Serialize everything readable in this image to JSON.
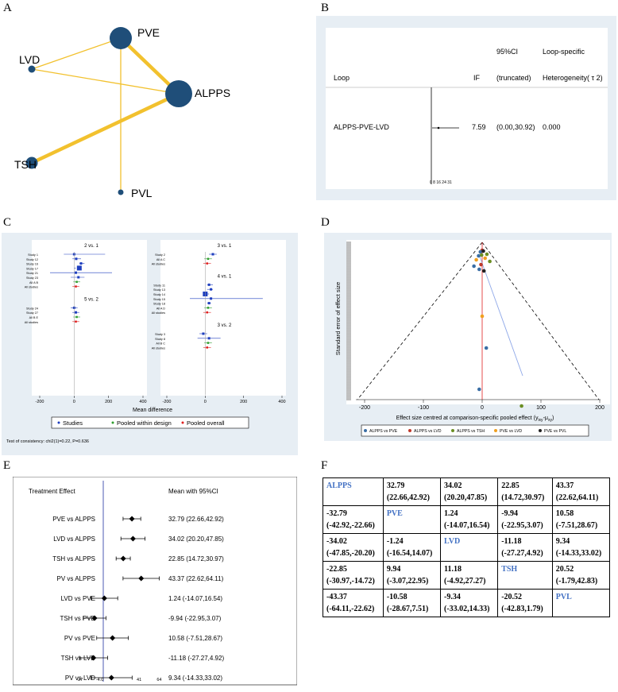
{
  "panels": {
    "a": {
      "letter": "A",
      "nodes": [
        {
          "id": "PVE",
          "label": "PVE"
        },
        {
          "id": "LVD",
          "label": "LVD"
        },
        {
          "id": "ALPPS",
          "label": "ALPPS"
        },
        {
          "id": "TSH",
          "label": "TSH"
        },
        {
          "id": "PVL",
          "label": "PVL"
        }
      ],
      "edges": [
        {
          "from": "PVE",
          "to": "ALPPS",
          "weight": "thick"
        },
        {
          "from": "TSH",
          "to": "ALPPS",
          "weight": "thick"
        },
        {
          "from": "LVD",
          "to": "PVE",
          "weight": "thin"
        },
        {
          "from": "LVD",
          "to": "ALPPS",
          "weight": "thin"
        },
        {
          "from": "PVE",
          "to": "PVL",
          "weight": "thin"
        }
      ],
      "colors": {
        "node": "#1f4e79",
        "edge": "#f2c12e"
      }
    },
    "b": {
      "letter": "B",
      "header": {
        "loop": "Loop",
        "if": "IF",
        "ci_top": "95%CI",
        "ci_bottom": "(truncated)",
        "het_top": "Loop-specific",
        "het_bottom": "Heterogeneity( τ 2)"
      },
      "row": {
        "loop": "ALPPS-PVE-LVD",
        "if": "7.59",
        "ci": "(0.00,30.92)",
        "het": "0.000"
      },
      "axis_ticks": "0  8  16  24 31"
    },
    "c": {
      "letter": "C",
      "left_groups": [
        {
          "title": "2 vs. 1",
          "rows": [
            "Study 1",
            "Study 12",
            "Study 16",
            "Study 17",
            "Study 21",
            "Study 23",
            "All A B",
            "All studies"
          ]
        },
        {
          "title": "5 vs. 2",
          "rows": [
            "Study 24",
            "Study 27",
            "All B E",
            "All studies"
          ]
        }
      ],
      "right_groups": [
        {
          "title": "3 vs. 1",
          "rows": [
            "Study 2",
            "All A C",
            "All studies"
          ]
        },
        {
          "title": "4 vs. 1",
          "rows": [
            "Study 11",
            "Study 13",
            "Study 14",
            "Study 15",
            "Study 18",
            "All A D",
            "All studies"
          ]
        },
        {
          "title": "3 vs. 2",
          "rows": [
            "Study 3",
            "Study 8",
            "All B C",
            "All studies"
          ]
        }
      ],
      "left_ticks": [
        "-200",
        "0",
        "200",
        "400"
      ],
      "right_ticks": [
        "-200",
        "0",
        "200",
        "400"
      ],
      "xlabel": "Mean difference",
      "legend": [
        "Studies",
        "Pooled within design",
        "Pooled overall"
      ],
      "legend_colors": [
        "#1f3fbf",
        "#2e9e2e",
        "#e02020"
      ],
      "consistency": "Test of consistency: chi2(1)=0.22, P=0.636"
    },
    "d": {
      "letter": "D",
      "ylabel": "Standard error of effect size",
      "xlabel": "Effect size centred at comparison-specific pooled effect (y",
      "xlabel_sub": "ixy",
      "xlabel_tail": "-μ",
      "xlabel_tail_sub": "xy",
      "xlabel_end": ")",
      "ticks": [
        "-200",
        "-100",
        "0",
        "100",
        "200"
      ],
      "legend": [
        "ALPPS vs PVE",
        "ALPPS vs LVD",
        "ALPPS vs TSH",
        "PVE vs LVD",
        "PVE vs PVL"
      ],
      "legend_colors": [
        "#3a6ea5",
        "#c0392b",
        "#6b8e23",
        "#f0a020",
        "#222222"
      ]
    },
    "e": {
      "letter": "E",
      "col1": "Treatment Effect",
      "col2": "Mean with 95%CI",
      "rows": [
        {
          "label": "PVE vs ALPPS",
          "text": "32.79 (22.66,42.92)",
          "mean": 32.79,
          "lo": 22.66,
          "hi": 42.92
        },
        {
          "label": "LVD vs ALPPS",
          "text": "34.02 (20.20,47.85)",
          "mean": 34.02,
          "lo": 20.2,
          "hi": 47.85
        },
        {
          "label": "TSH vs ALPPS",
          "text": "22.85 (14.72,30.97)",
          "mean": 22.85,
          "lo": 14.72,
          "hi": 30.97
        },
        {
          "label": "PV vs ALPPS",
          "text": "43.37 (22.62,64.11)",
          "mean": 43.37,
          "lo": 22.62,
          "hi": 64.11
        },
        {
          "label": "LVD vs PVE",
          "text": "1.24 (-14.07,16.54)",
          "mean": 1.24,
          "lo": -14.07,
          "hi": 16.54
        },
        {
          "label": "TSH vs PVE",
          "text": "-9.94 (-22.95,3.07)",
          "mean": -9.94,
          "lo": -22.95,
          "hi": 3.07
        },
        {
          "label": "PV vs PVE",
          "text": "10.58 (-7.51,28.67)",
          "mean": 10.58,
          "lo": -7.51,
          "hi": 28.67
        },
        {
          "label": "TSH vs LVD",
          "text": "-11.18 (-27.27,4.92)",
          "mean": -11.18,
          "lo": -27.27,
          "hi": 4.92
        },
        {
          "label": "PV vs LVD",
          "text": "9.34 (-14.33,33.02)",
          "mean": 9.34,
          "lo": -14.33,
          "hi": 33.02
        },
        {
          "label": "PV vs TSH",
          "text": "20.52 (-1.79,42.83)",
          "mean": 20.52,
          "lo": -1.79,
          "hi": 42.83
        }
      ],
      "ticks": [
        "-27",
        "-4.0",
        "41",
        "64"
      ]
    },
    "f": {
      "letter": "F",
      "table": [
        [
          {
            "t1": "ALPPS",
            "diag": true
          },
          {
            "t1": "32.79",
            "t2": "(22.66,42.92)"
          },
          {
            "t1": "34.02",
            "t2": "(20.20,47.85)"
          },
          {
            "t1": "22.85",
            "t2": "(14.72,30.97)"
          },
          {
            "t1": "43.37",
            "t2": "(22.62,64.11)"
          }
        ],
        [
          {
            "t1": "-32.79",
            "t2": "(-42.92,-22.66)"
          },
          {
            "t1": "PVE",
            "diag": true
          },
          {
            "t1": "1.24",
            "t2": "(-14.07,16.54)"
          },
          {
            "t1": "-9.94",
            "t2": "(-22.95,3.07)"
          },
          {
            "t1": "10.58",
            "t2": "(-7.51,28.67)"
          }
        ],
        [
          {
            "t1": "-34.02",
            "t2": "(-47.85,-20.20)"
          },
          {
            "t1": "-1.24",
            "t2": "(-16.54,14.07)"
          },
          {
            "t1": "LVD",
            "diag": true
          },
          {
            "t1": "-11.18",
            "t2": "(-27.27,4.92)"
          },
          {
            "t1": "9.34",
            "t2": "(-14.33,33.02)"
          }
        ],
        [
          {
            "t1": "-22.85",
            "t2": "(-30.97,-14.72)"
          },
          {
            "t1": "9.94",
            "t2": "(-3.07,22.95)"
          },
          {
            "t1": "11.18",
            "t2": "(-4.92,27.27)"
          },
          {
            "t1": "TSH",
            "diag": true
          },
          {
            "t1": "20.52",
            "t2": "(-1.79,42.83)"
          }
        ],
        [
          {
            "t1": "-43.37",
            "t2": "(-64.11,-22.62)"
          },
          {
            "t1": "-10.58",
            "t2": "(-28.67,7.51)"
          },
          {
            "t1": "-9.34",
            "t2": "(-33.02,14.33)"
          },
          {
            "t1": "-20.52",
            "t2": "(-42.83,1.79)"
          },
          {
            "t1": "PVL",
            "diag": true
          }
        ]
      ]
    }
  }
}
